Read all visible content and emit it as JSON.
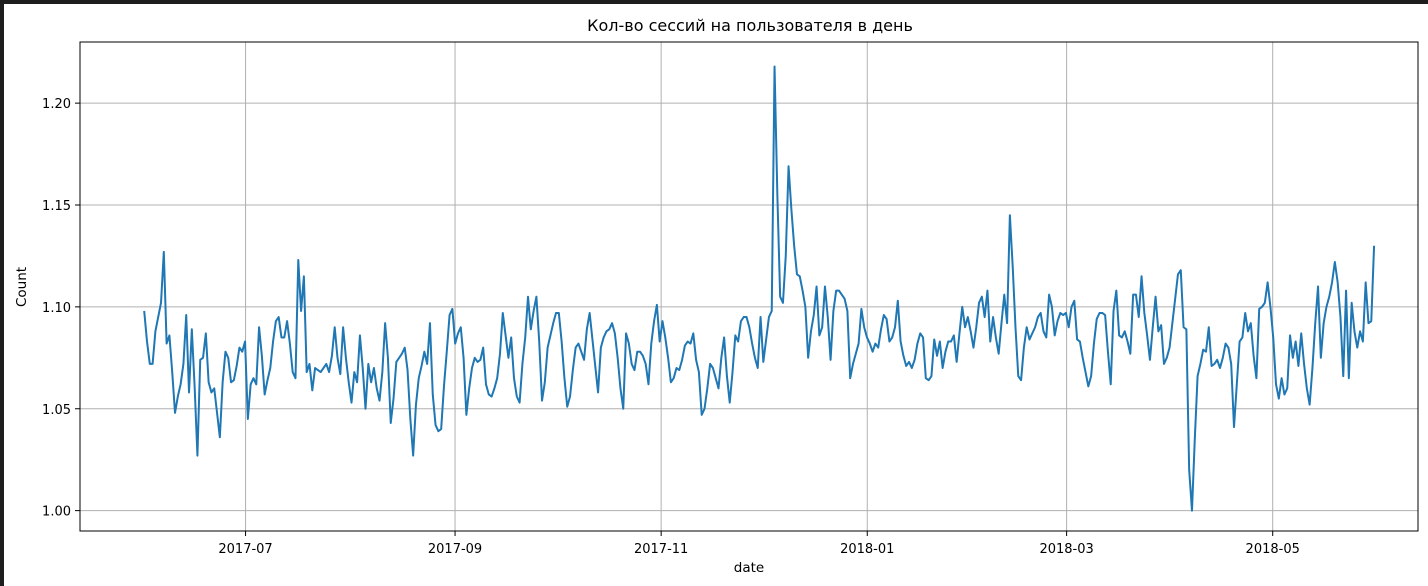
{
  "chart_data": {
    "type": "line",
    "title": "Кол-во сессий на пользователя в день",
    "xlabel": "date",
    "ylabel": "Count",
    "xlim": [
      "2017-05-13",
      "2018-06-13"
    ],
    "ylim": [
      0.99,
      1.23
    ],
    "grid": true,
    "x_ticks": [
      "2017-07",
      "2017-09",
      "2017-11",
      "2018-01",
      "2018-03",
      "2018-05"
    ],
    "y_ticks": [
      "1.00",
      "1.05",
      "1.10",
      "1.15",
      "1.20"
    ],
    "line_color": "#1f77b4",
    "x_start": "2017-06-01",
    "x_end": "2018-05-31",
    "series": [
      {
        "name": "",
        "values": [
          1.098,
          1.083,
          1.072,
          1.072,
          1.088,
          1.095,
          1.102,
          1.127,
          1.082,
          1.086,
          1.068,
          1.048,
          1.056,
          1.062,
          1.072,
          1.096,
          1.058,
          1.089,
          1.061,
          1.027,
          1.074,
          1.075,
          1.087,
          1.063,
          1.058,
          1.06,
          1.048,
          1.036,
          1.063,
          1.078,
          1.075,
          1.063,
          1.064,
          1.071,
          1.08,
          1.078,
          1.083,
          1.045,
          1.062,
          1.065,
          1.062,
          1.09,
          1.076,
          1.057,
          1.064,
          1.07,
          1.083,
          1.093,
          1.095,
          1.085,
          1.085,
          1.093,
          1.082,
          1.068,
          1.065,
          1.123,
          1.098,
          1.115,
          1.068,
          1.072,
          1.059,
          1.07,
          1.069,
          1.068,
          1.07,
          1.072,
          1.068,
          1.076,
          1.09,
          1.075,
          1.067,
          1.09,
          1.075,
          1.063,
          1.053,
          1.068,
          1.063,
          1.086,
          1.07,
          1.05,
          1.072,
          1.063,
          1.07,
          1.06,
          1.054,
          1.068,
          1.092,
          1.075,
          1.043,
          1.055,
          1.073,
          1.075,
          1.077,
          1.08,
          1.069,
          1.045,
          1.027,
          1.052,
          1.065,
          1.071,
          1.078,
          1.072,
          1.092,
          1.057,
          1.042,
          1.039,
          1.04,
          1.061,
          1.078,
          1.096,
          1.099,
          1.082,
          1.087,
          1.09,
          1.075,
          1.047,
          1.06,
          1.07,
          1.075,
          1.073,
          1.074,
          1.08,
          1.062,
          1.057,
          1.056,
          1.06,
          1.065,
          1.077,
          1.097,
          1.086,
          1.075,
          1.085,
          1.065,
          1.056,
          1.053,
          1.072,
          1.085,
          1.105,
          1.089,
          1.098,
          1.105,
          1.083,
          1.054,
          1.063,
          1.08,
          1.086,
          1.092,
          1.097,
          1.097,
          1.083,
          1.065,
          1.051,
          1.056,
          1.069,
          1.08,
          1.082,
          1.078,
          1.074,
          1.089,
          1.097,
          1.084,
          1.071,
          1.058,
          1.08,
          1.085,
          1.088,
          1.089,
          1.092,
          1.087,
          1.075,
          1.06,
          1.05,
          1.087,
          1.082,
          1.072,
          1.069,
          1.078,
          1.078,
          1.076,
          1.072,
          1.062,
          1.082,
          1.093,
          1.101,
          1.083,
          1.093,
          1.085,
          1.075,
          1.063,
          1.065,
          1.07,
          1.069,
          1.074,
          1.081,
          1.083,
          1.082,
          1.087,
          1.074,
          1.068,
          1.047,
          1.05,
          1.06,
          1.072,
          1.07,
          1.065,
          1.06,
          1.075,
          1.085,
          1.066,
          1.053,
          1.068,
          1.086,
          1.083,
          1.093,
          1.095,
          1.095,
          1.09,
          1.082,
          1.075,
          1.07,
          1.095,
          1.073,
          1.084,
          1.095,
          1.098,
          1.218,
          1.155,
          1.105,
          1.102,
          1.125,
          1.169,
          1.148,
          1.13,
          1.116,
          1.115,
          1.108,
          1.1,
          1.075,
          1.088,
          1.096,
          1.11,
          1.086,
          1.09,
          1.11,
          1.095,
          1.074,
          1.098,
          1.108,
          1.108,
          1.106,
          1.104,
          1.098,
          1.065,
          1.072,
          1.077,
          1.082,
          1.099,
          1.09,
          1.085,
          1.082,
          1.078,
          1.082,
          1.08,
          1.089,
          1.096,
          1.094,
          1.083,
          1.085,
          1.09,
          1.103,
          1.083,
          1.076,
          1.071,
          1.073,
          1.07,
          1.074,
          1.082,
          1.087,
          1.085,
          1.065,
          1.064,
          1.066,
          1.084,
          1.076,
          1.083,
          1.07,
          1.078,
          1.083,
          1.083,
          1.086,
          1.073,
          1.087,
          1.1,
          1.09,
          1.095,
          1.088,
          1.08,
          1.09,
          1.102,
          1.105,
          1.095,
          1.108,
          1.083,
          1.095,
          1.085,
          1.077,
          1.092,
          1.106,
          1.092,
          1.145,
          1.12,
          1.09,
          1.066,
          1.064,
          1.08,
          1.09,
          1.084,
          1.087,
          1.09,
          1.095,
          1.097,
          1.088,
          1.085,
          1.106,
          1.1,
          1.086,
          1.093,
          1.097,
          1.096,
          1.097,
          1.09,
          1.1,
          1.103,
          1.084,
          1.083,
          1.075,
          1.068,
          1.061,
          1.066,
          1.082,
          1.094,
          1.097,
          1.097,
          1.096,
          1.078,
          1.062,
          1.098,
          1.108,
          1.086,
          1.085,
          1.088,
          1.083,
          1.077,
          1.106,
          1.106,
          1.095,
          1.115,
          1.097,
          1.086,
          1.074,
          1.09,
          1.105,
          1.088,
          1.091,
          1.072,
          1.075,
          1.08,
          1.092,
          1.104,
          1.116,
          1.118,
          1.09,
          1.089,
          1.02,
          1.0,
          1.035,
          1.066,
          1.072,
          1.079,
          1.078,
          1.09,
          1.071,
          1.072,
          1.074,
          1.07,
          1.075,
          1.082,
          1.08,
          1.072,
          1.041,
          1.062,
          1.083,
          1.085,
          1.097,
          1.088,
          1.092,
          1.076,
          1.065,
          1.099,
          1.1,
          1.102,
          1.112,
          1.1,
          1.085,
          1.062,
          1.055,
          1.065,
          1.057,
          1.06,
          1.086,
          1.075,
          1.083,
          1.071,
          1.087,
          1.072,
          1.06,
          1.052,
          1.07,
          1.092,
          1.11,
          1.075,
          1.092,
          1.1,
          1.105,
          1.112,
          1.122,
          1.112,
          1.095,
          1.066,
          1.108,
          1.065,
          1.102,
          1.088,
          1.08,
          1.088,
          1.083,
          1.112,
          1.092,
          1.093,
          1.13
        ]
      }
    ]
  }
}
